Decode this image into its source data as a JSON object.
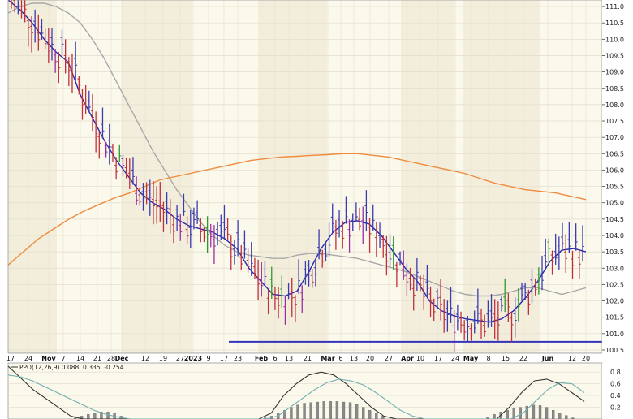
{
  "chart_data": [
    {
      "type": "ohlc",
      "grid": true,
      "price_axis": {
        "ylim": [
          100.4,
          111.2
        ],
        "tick_labels": [
          "111.0",
          "110.5",
          "110.0",
          "109.5",
          "109.0",
          "108.5",
          "108.0",
          "107.5",
          "107.0",
          "106.5",
          "106.0",
          "105.5",
          "105.0",
          "104.5",
          "104.0",
          "103.5",
          "103.0",
          "102.5",
          "102.0",
          "101.5",
          "101.0",
          "100.5"
        ],
        "tick_values": [
          111.0,
          110.5,
          110.0,
          109.5,
          109.0,
          108.5,
          108.0,
          107.5,
          107.0,
          106.5,
          106.0,
          105.5,
          105.0,
          104.5,
          104.0,
          103.5,
          103.0,
          102.5,
          102.0,
          101.5,
          101.0,
          100.5
        ]
      },
      "x_axis": {
        "labels": [
          "17",
          "24",
          "Nov",
          "7",
          "14",
          "21",
          "28",
          "Dec",
          "12",
          "19",
          "27",
          "2023",
          "9",
          "17",
          "23",
          "Feb",
          "6",
          "13",
          "21",
          "Mar",
          "6",
          "13",
          "20",
          "27",
          "Apr",
          "10",
          "17",
          "24",
          "May",
          "8",
          "15",
          "22",
          "Jun",
          "12",
          "20"
        ],
        "bold_labels": [
          "Nov",
          "Dec",
          "2023",
          "Feb",
          "Mar",
          "Apr",
          "May",
          "Jun"
        ]
      },
      "support_line": {
        "value": 100.75,
        "color": "#3333bb"
      },
      "series": [
        {
          "name": "moving-average-fast",
          "color": "#2a2aa8",
          "values": [
            111.2,
            110.9,
            110.5,
            110.0,
            109.6,
            109.3,
            108.3,
            107.6,
            106.9,
            106.3,
            105.8,
            105.3,
            105.0,
            104.8,
            104.5,
            104.3,
            104.2,
            104.1,
            103.9,
            103.6,
            103.0,
            102.6,
            102.2,
            102.15,
            102.3,
            102.9,
            103.6,
            104.1,
            104.4,
            104.45,
            104.35,
            104.0,
            103.5,
            103.0,
            102.6,
            102.0,
            101.7,
            101.55,
            101.45,
            101.4,
            101.35,
            101.45,
            101.7,
            102.1,
            102.6,
            103.2,
            103.55,
            103.6,
            103.5
          ]
        },
        {
          "name": "moving-average-mid",
          "color": "#a8a8a8",
          "values": [
            110.8,
            111.0,
            111.1,
            111.1,
            111.0,
            110.8,
            110.5,
            110.0,
            109.4,
            108.7,
            108.0,
            107.3,
            106.6,
            106.0,
            105.4,
            104.9,
            104.4,
            104.0,
            103.7,
            103.5,
            103.4,
            103.35,
            103.3,
            103.3,
            103.4,
            103.45,
            103.45,
            103.4,
            103.35,
            103.3,
            103.2,
            103.1,
            103.0,
            102.9,
            102.75,
            102.6,
            102.45,
            102.3,
            102.2,
            102.15,
            102.15,
            102.2,
            102.3,
            102.4,
            102.4,
            102.3,
            102.2,
            102.3,
            102.4
          ]
        },
        {
          "name": "moving-average-slow",
          "color": "#f08a3c",
          "values": [
            103.1,
            103.5,
            103.9,
            104.2,
            104.5,
            104.75,
            104.95,
            105.15,
            105.3,
            105.5,
            105.7,
            105.8,
            105.9,
            106.0,
            106.1,
            106.2,
            106.3,
            106.35,
            106.4,
            106.42,
            106.45,
            106.47,
            106.5,
            106.5,
            106.45,
            106.4,
            106.3,
            106.2,
            106.1,
            106.0,
            105.9,
            105.75,
            105.6,
            105.5,
            105.4,
            105.35,
            105.3,
            105.2,
            105.1
          ]
        }
      ]
    },
    {
      "type": "bar+line",
      "legend_text": "PPO(12,26,9) 0.088, 0.335, -0.254",
      "ylim": [
        0.0,
        0.9
      ],
      "tick_labels": [
        "0.8",
        "0.6",
        "0.4",
        "0.2"
      ],
      "tick_values": [
        0.8,
        0.6,
        0.4,
        0.2
      ],
      "histogram": [
        0,
        0,
        0,
        0,
        0,
        0,
        0,
        0,
        0,
        0,
        0.02,
        0.05,
        0.08,
        0.1,
        0.12,
        0.12,
        0.1,
        0.05,
        0,
        0,
        0,
        0,
        0,
        0,
        0,
        0,
        0,
        0,
        0,
        0,
        0,
        0,
        0,
        0,
        0,
        0,
        0,
        0,
        0,
        0.02,
        0.05,
        0.1,
        0.15,
        0.2,
        0.24,
        0.27,
        0.28,
        0.29,
        0.3,
        0.3,
        0.3,
        0.29,
        0.28,
        0.25,
        0.2,
        0.15,
        0.1,
        0.05,
        0,
        0,
        0,
        0,
        0,
        0,
        0,
        0,
        0,
        0,
        0,
        0,
        0,
        0,
        0,
        0.03,
        0.08,
        0.12,
        0.15,
        0.18,
        0.2,
        0.22,
        0.24,
        0.23,
        0.2,
        0.15,
        0.1,
        0.06,
        0.02,
        0,
        0
      ],
      "ppo_line": [
        0.9,
        0.7,
        0.5,
        0.35,
        0.2,
        0.05,
        0,
        0,
        0,
        0,
        0,
        0,
        0,
        0,
        0,
        0,
        0,
        0,
        0,
        0,
        0,
        0.1,
        0.4,
        0.6,
        0.75,
        0.8,
        0.75,
        0.6,
        0.4,
        0.2,
        0.05,
        0,
        0,
        0,
        0,
        0,
        0,
        0,
        0,
        0,
        0.2,
        0.45,
        0.65,
        0.68,
        0.6,
        0.45,
        0.3
      ],
      "signal_line": [
        0.75,
        0.72,
        0.65,
        0.55,
        0.45,
        0.35,
        0.25,
        0.15,
        0.08,
        0.03,
        0,
        0,
        0,
        0,
        0,
        0,
        0,
        0,
        0,
        0,
        0,
        0,
        0.05,
        0.2,
        0.35,
        0.5,
        0.62,
        0.68,
        0.65,
        0.58,
        0.45,
        0.3,
        0.15,
        0.05,
        0,
        0,
        0,
        0,
        0,
        0,
        0,
        0,
        0.1,
        0.3,
        0.5,
        0.62,
        0.6,
        0.45
      ]
    }
  ]
}
